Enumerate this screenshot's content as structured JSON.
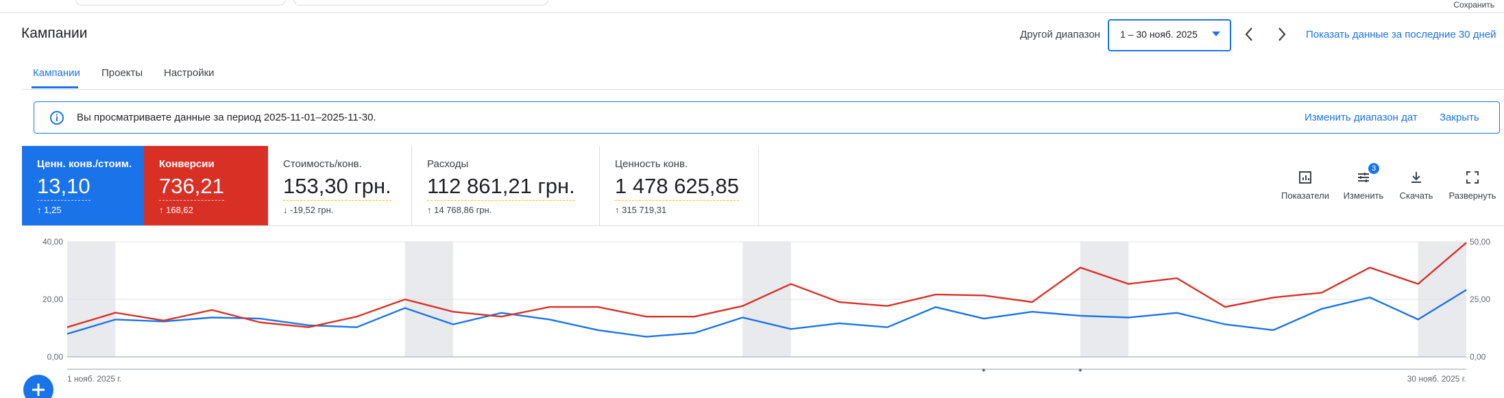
{
  "top_bar": {
    "save": "Сохранить"
  },
  "header": {
    "title": "Кампании",
    "range_label": "Другой диапазон",
    "range_value": "1 – 30 нояб. 2025",
    "last_30_link": "Показать данные за последние 30 дней"
  },
  "tabs": [
    "Кампании",
    "Проекты",
    "Настройки"
  ],
  "active_tab": 0,
  "banner": {
    "text": "Вы просматриваете данные за период 2025-11-01–2025-11-30.",
    "change_link": "Изменить диапазон дат",
    "close_link": "Закрыть"
  },
  "metrics": [
    {
      "title": "Стоимость/конв.",
      "value": "153,30 грн.",
      "change": "-19,52 грн.",
      "direction": "down"
    },
    {
      "title": "Расходы",
      "value": "112 861,21 грн.",
      "change": "14 768,86 грн.",
      "direction": "up"
    },
    {
      "title": "Ценность конв.",
      "value": "1 478 625,85",
      "change": "315 719,31",
      "direction": "up"
    }
  ],
  "toolbar": [
    {
      "label": "Показатели"
    },
    {
      "label": "Изменить",
      "badge": "3"
    },
    {
      "label": "Скачать"
    },
    {
      "label": "Развернуть"
    }
  ],
  "chart_data": {
    "type": "line",
    "categories": [
      "1 нояб. 2025 г.",
      null,
      null,
      null,
      null,
      null,
      null,
      null,
      null,
      null,
      null,
      null,
      null,
      null,
      null,
      null,
      null,
      null,
      null,
      null,
      null,
      null,
      null,
      null,
      null,
      null,
      null,
      null,
      null,
      "30 нояб. 2025 г."
    ],
    "series": [
      {
        "name": "Ценн. конв./стоим.",
        "total": "13,10",
        "change": "1,25",
        "color": "#1a73e8",
        "values": [
          8,
          13,
          12.3,
          13.7,
          13.3,
          11,
          10.3,
          17,
          11.3,
          15.3,
          13,
          9.3,
          7,
          8.3,
          13.7,
          9.7,
          11.7,
          10.3,
          17.3,
          13.3,
          15.7,
          14.3,
          13.7,
          15.3,
          11.3,
          9.3,
          16.7,
          20.7,
          13,
          23.3
        ]
      },
      {
        "name": "Конверсии",
        "total": "736,21",
        "change": "168,62",
        "color": "#d93025",
        "axis": "y2",
        "values": [
          12.9,
          19.2,
          15.8,
          20.4,
          15,
          12.9,
          17.5,
          25,
          19.6,
          17.5,
          21.7,
          21.7,
          17.5,
          17.5,
          22.1,
          31.7,
          23.8,
          22.1,
          27.1,
          26.7,
          23.8,
          38.8,
          31.7,
          34.2,
          21.7,
          25.8,
          27.9,
          38.8,
          31.7,
          49.6
        ]
      }
    ],
    "ylim": [
      0,
      40
    ],
    "yticks": [
      {
        "value": 0,
        "label": "0,00"
      },
      {
        "value": 20,
        "label": "20,00"
      },
      {
        "value": 40,
        "label": "40,00"
      }
    ],
    "y2lim": [
      0,
      50
    ],
    "y2ticks": [
      {
        "value": 0,
        "label": "0,00"
      },
      {
        "value": 25,
        "label": "25,00"
      },
      {
        "value": 50,
        "label": "50,00"
      }
    ],
    "grid": true
  }
}
